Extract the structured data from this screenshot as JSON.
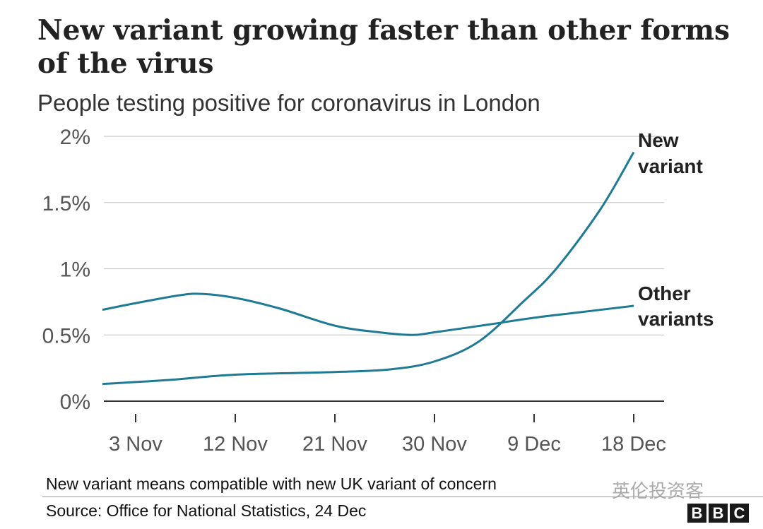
{
  "chart_data": {
    "type": "line",
    "title": "New variant growing faster than other forms of the virus",
    "subtitle": "People testing positive for coronavirus in London",
    "xlabel": "",
    "ylabel": "",
    "x_ticks": [
      "3 Nov",
      "12 Nov",
      "21 Nov",
      "30 Nov",
      "9 Dec",
      "18 Dec"
    ],
    "x_tick_days": [
      0,
      9,
      18,
      27,
      36,
      45
    ],
    "x_unit": "days since 3 Nov",
    "xlim": [
      -3,
      45
    ],
    "y_ticks": [
      "0%",
      "0.5%",
      "1%",
      "1.5%",
      "2%"
    ],
    "y_tick_values": [
      0,
      0.5,
      1,
      1.5,
      2
    ],
    "ylim": [
      0,
      2
    ],
    "grid": true,
    "series": [
      {
        "name": "Other variants",
        "label": [
          "Other",
          "variants"
        ],
        "color": "#1f7a94",
        "x": [
          -3,
          0,
          4,
          6,
          9,
          13,
          18,
          22,
          25,
          27,
          32,
          36,
          40,
          45
        ],
        "values": [
          0.69,
          0.74,
          0.8,
          0.81,
          0.78,
          0.7,
          0.57,
          0.52,
          0.5,
          0.52,
          0.58,
          0.63,
          0.67,
          0.72
        ]
      },
      {
        "name": "New variant",
        "label": [
          "New",
          "variant"
        ],
        "color": "#1f7a94",
        "x": [
          -3,
          3,
          9,
          18,
          23,
          27,
          31,
          35,
          38,
          42,
          45
        ],
        "values": [
          0.13,
          0.16,
          0.2,
          0.22,
          0.24,
          0.3,
          0.45,
          0.75,
          1.0,
          1.45,
          1.88
        ]
      }
    ]
  },
  "footer": {
    "note": "New variant means compatible with new UK variant of concern",
    "source": "Source: Office for National Statistics, 24 Dec",
    "watermark": "英伦投资客",
    "logo": [
      "B",
      "B",
      "C"
    ]
  }
}
